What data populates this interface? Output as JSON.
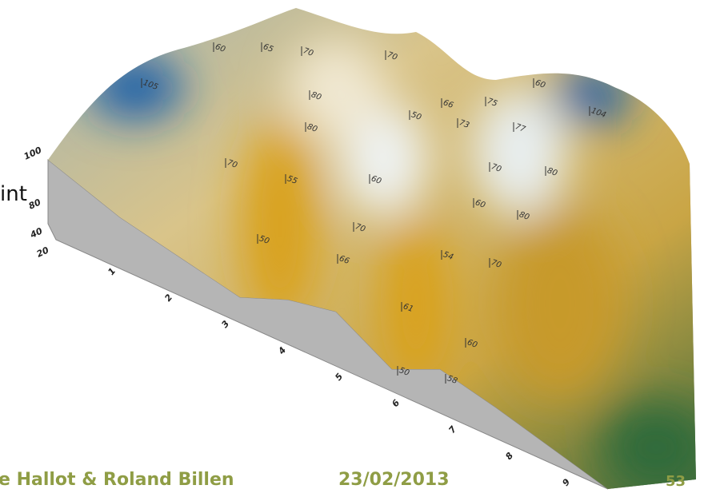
{
  "side_text": "int",
  "footer": {
    "authors": "e Hallot & Roland Billen",
    "date": "23/02/2013",
    "page": "53"
  },
  "surface": {
    "z_axis_labels": [
      "100",
      "80",
      "40",
      "20"
    ],
    "x_axis_labels": [
      "1",
      "2",
      "3",
      "4",
      "5",
      "6",
      "7",
      "8",
      "9"
    ],
    "contour_labels": [
      "105",
      "104",
      "70",
      "80",
      "80",
      "55",
      "60",
      "70",
      "50",
      "66",
      "50",
      "73",
      "75",
      "77",
      "70",
      "80",
      "80",
      "60",
      "54",
      "70",
      "61",
      "60",
      "50",
      "58",
      "60",
      "65",
      "70",
      "70",
      "60",
      "66"
    ]
  }
}
